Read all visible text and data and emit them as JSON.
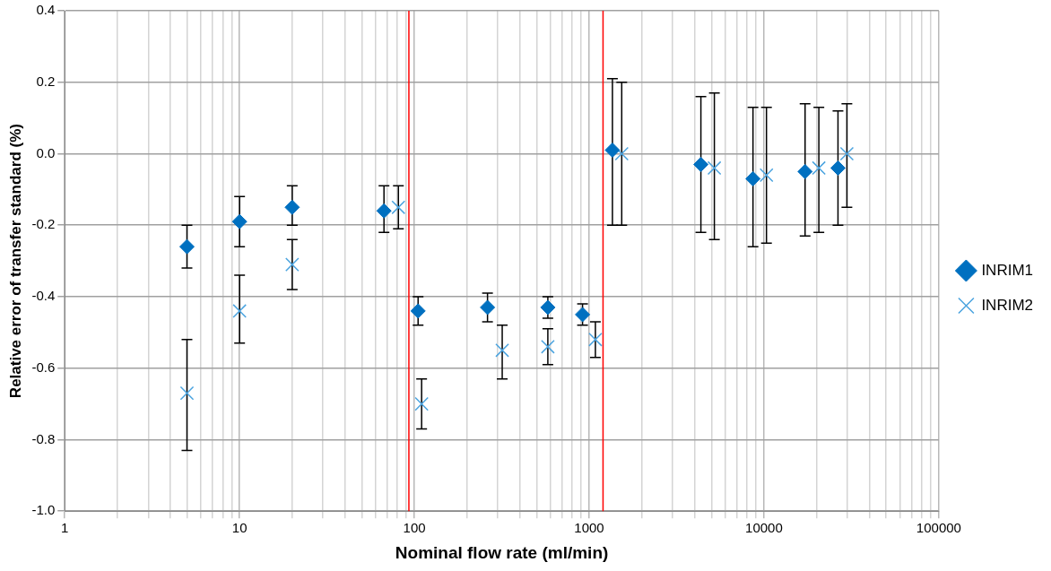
{
  "chart_data": {
    "type": "scatter",
    "xlabel": "Nominal flow rate (ml/min)",
    "ylabel": "Relative error of transfer standard (%)",
    "log": "x",
    "grid": true,
    "legend": "right",
    "xlim": [
      1,
      100000
    ],
    "ylim": [
      -1,
      0.4
    ],
    "xticks": [
      1,
      {
        "value": 2,
        "label": null
      },
      {
        "value": 3,
        "label": null
      },
      {
        "value": 4,
        "label": null
      },
      {
        "value": 5,
        "label": null
      },
      {
        "value": 6,
        "label": null
      },
      {
        "value": 7,
        "label": null
      },
      {
        "value": 8,
        "label": null
      },
      {
        "value": 9,
        "label": null
      },
      10,
      {
        "value": 20,
        "label": null
      },
      {
        "value": 30,
        "label": null
      },
      {
        "value": 40,
        "label": null
      },
      {
        "value": 50,
        "label": null
      },
      {
        "value": 60,
        "label": null
      },
      {
        "value": 70,
        "label": null
      },
      {
        "value": 80,
        "label": null
      },
      {
        "value": 90,
        "label": null
      },
      100,
      {
        "value": 200,
        "label": null
      },
      {
        "value": 300,
        "label": null
      },
      {
        "value": 400,
        "label": null
      },
      {
        "value": 500,
        "label": null
      },
      {
        "value": 600,
        "label": null
      },
      {
        "value": 700,
        "label": null
      },
      {
        "value": 800,
        "label": null
      },
      {
        "value": 900,
        "label": null
      },
      1000,
      {
        "value": 2000,
        "label": null
      },
      {
        "value": 3000,
        "label": null
      },
      {
        "value": 4000,
        "label": null
      },
      {
        "value": 5000,
        "label": null
      },
      {
        "value": 6000,
        "label": null
      },
      {
        "value": 7000,
        "label": null
      },
      {
        "value": 8000,
        "label": null
      },
      {
        "value": 9000,
        "label": null
      },
      10000,
      {
        "value": 20000,
        "label": null
      },
      {
        "value": 30000,
        "label": null
      },
      {
        "value": 40000,
        "label": null
      },
      {
        "value": 50000,
        "label": null
      },
      {
        "value": 60000,
        "label": null
      },
      {
        "value": 70000,
        "label": null
      },
      {
        "value": 80000,
        "label": null
      },
      {
        "value": 90000,
        "label": null
      },
      100000
    ],
    "yticks": [
      {
        "value": -1,
        "label": "-1.0"
      },
      {
        "value": -0.8,
        "label": "-0.8"
      },
      {
        "value": -0.6,
        "label": "-0.6"
      },
      {
        "value": -0.4,
        "label": "-0.4"
      },
      {
        "value": -0.2,
        "label": "-0.2"
      },
      {
        "value": 0,
        "label": "0.0"
      },
      {
        "value": 0.2,
        "label": "0.2"
      },
      {
        "value": 0.4,
        "label": "0.4"
      }
    ],
    "ref_lines": [
      {
        "axis": "x",
        "value": 93,
        "color": "#ff0000"
      },
      {
        "axis": "x",
        "value": 1200,
        "color": "#ff0000"
      }
    ],
    "series": [
      {
        "name": "INRIM1",
        "color": "#0070c0",
        "marker": "diamond",
        "x": [
          5,
          10,
          20,
          67,
          105,
          262,
          580,
          916,
          1358,
          4355,
          8650,
          17180,
          26500
        ],
        "values": [
          -0.26,
          -0.19,
          -0.15,
          -0.16,
          -0.44,
          -0.43,
          -0.43,
          -0.45,
          0.01,
          -0.03,
          -0.07,
          -0.05,
          -0.04
        ],
        "errors": [
          [
            -0.2,
            -0.32
          ],
          [
            -0.12,
            -0.26
          ],
          [
            -0.09,
            -0.2
          ],
          [
            -0.09,
            -0.22
          ],
          [
            -0.4,
            -0.48
          ],
          [
            -0.39,
            -0.47
          ],
          [
            -0.4,
            -0.46
          ],
          [
            -0.42,
            -0.48
          ],
          [
            0.21,
            -0.2
          ],
          [
            0.16,
            -0.22
          ],
          [
            0.13,
            -0.26
          ],
          [
            0.14,
            -0.23
          ],
          [
            0.12,
            -0.2
          ]
        ]
      },
      {
        "name": "INRIM2",
        "color": "#4aa3df",
        "marker": "cross",
        "x": [
          5,
          10,
          20,
          81,
          110,
          318,
          580,
          1085,
          1535,
          5200,
          10330,
          20600,
          29800
        ],
        "values": [
          -0.67,
          -0.44,
          -0.31,
          -0.15,
          -0.7,
          -0.55,
          -0.54,
          -0.52,
          0,
          -0.04,
          -0.06,
          -0.04,
          0
        ],
        "errors": [
          [
            -0.52,
            -0.83
          ],
          [
            -0.34,
            -0.53
          ],
          [
            -0.24,
            -0.38
          ],
          [
            -0.09,
            -0.21
          ],
          [
            -0.63,
            -0.77
          ],
          [
            -0.48,
            -0.63
          ],
          [
            -0.49,
            -0.59
          ],
          [
            -0.47,
            -0.57
          ],
          [
            0.2,
            -0.2
          ],
          [
            0.17,
            -0.24
          ],
          [
            0.13,
            -0.25
          ],
          [
            0.13,
            -0.22
          ],
          [
            0.14,
            -0.15
          ]
        ]
      }
    ]
  }
}
